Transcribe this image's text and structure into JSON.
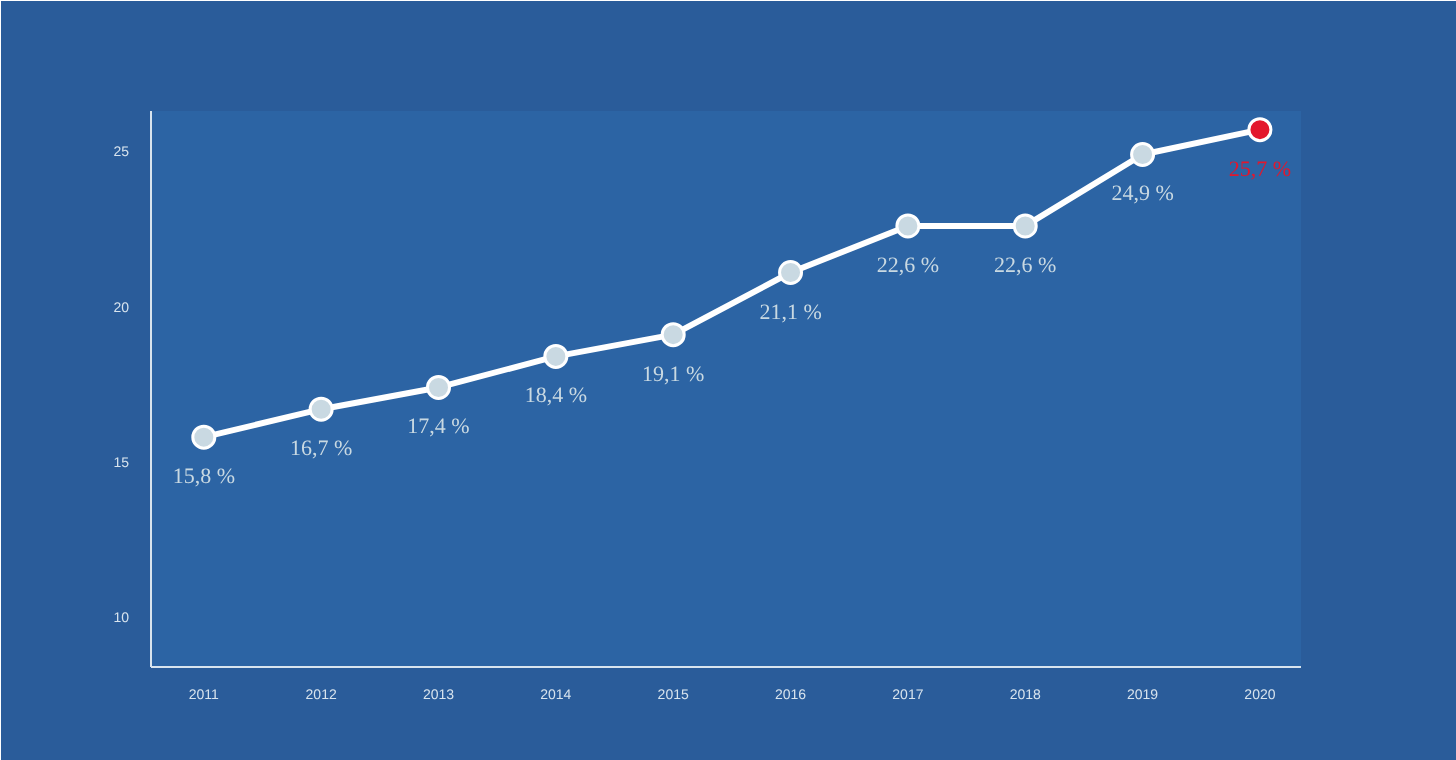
{
  "chart_data": {
    "type": "line",
    "categories": [
      "2011",
      "2012",
      "2013",
      "2014",
      "2015",
      "2016",
      "2017",
      "2018",
      "2019",
      "2020"
    ],
    "series": [
      {
        "color": "#ffffff",
        "values": [
          15.8,
          16.7,
          17.4,
          18.4,
          19.1,
          21.1,
          22.6,
          22.6,
          24.9,
          25.7
        ],
        "colors": [
          "#c9d9e2",
          "#c9d9e2",
          "#c9d9e2",
          "#c9d9e2",
          "#c9d9e2",
          "#c9d9e2",
          "#c9d9e2",
          "#c9d9e2",
          "#c9d9e2",
          "#e3172d"
        ],
        "value_labels": [
          "15,8 %",
          "16,7 %",
          "17,4 %",
          "18,4 %",
          "19,1 %",
          "21,1 %",
          "22,6 %",
          "22,6 %",
          "24,9 %",
          "25,7 %"
        ]
      }
    ],
    "ylim": [
      8.4,
      26.3
    ],
    "yticks": [
      10,
      15,
      20,
      25
    ],
    "grid": false,
    "marker": "circle",
    "line_style": "solid"
  }
}
